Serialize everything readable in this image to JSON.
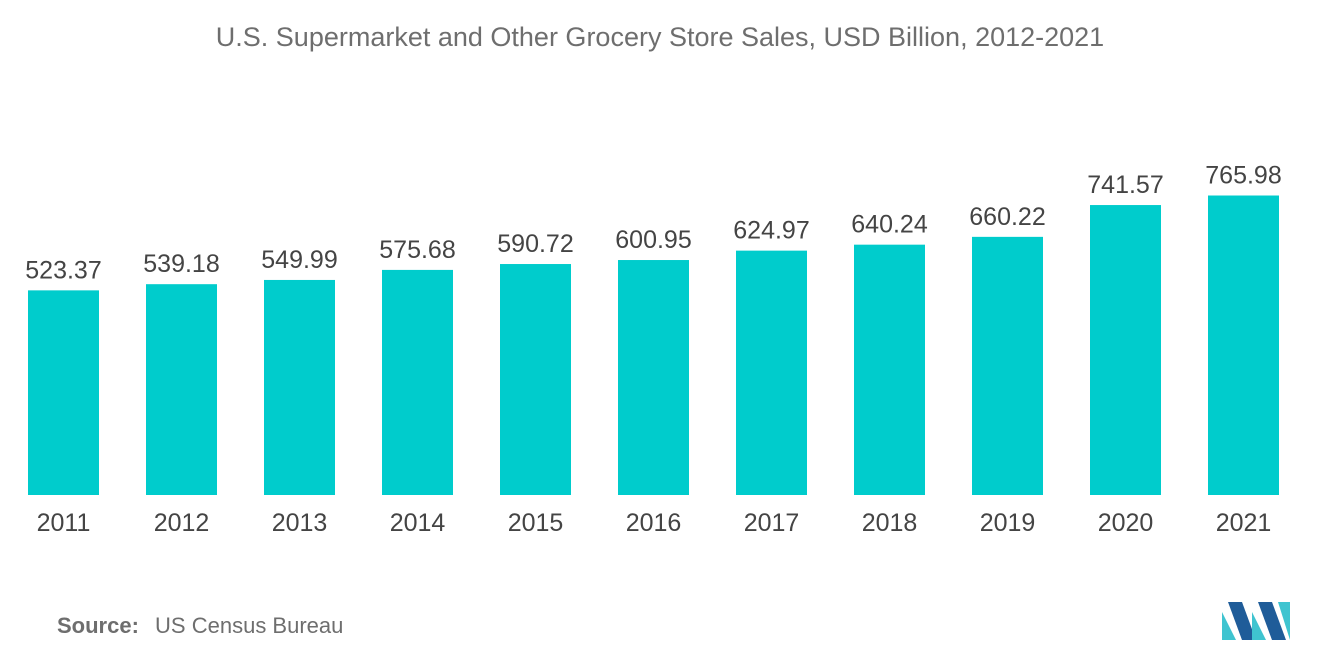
{
  "chart_data": {
    "type": "bar",
    "title": "U.S. Supermarket and Other Grocery Store Sales, USD Billion, 2012-2021",
    "xlabel": "",
    "ylabel": "",
    "categories": [
      "2011",
      "2012",
      "2013",
      "2014",
      "2015",
      "2016",
      "2017",
      "2018",
      "2019",
      "2020",
      "2021"
    ],
    "values": [
      523.37,
      539.18,
      549.99,
      575.68,
      590.72,
      600.95,
      624.97,
      640.24,
      660.22,
      741.57,
      765.98
    ],
    "value_labels": [
      "523.37",
      "539.18",
      "549.99",
      "575.68",
      "590.72",
      "600.95",
      "624.97",
      "640.24",
      "660.22",
      "741.57",
      "765.98"
    ],
    "ylim": [
      0,
      800
    ],
    "grid": false,
    "legend": "none",
    "bar_color": "#00cccc"
  },
  "source": {
    "label": "Source:",
    "text": "US Census Bureau"
  },
  "logo": {
    "icon": "mordor-intelligence-logo-icon",
    "color_dark": "#1f5c99",
    "color_light": "#3fc4d0"
  }
}
